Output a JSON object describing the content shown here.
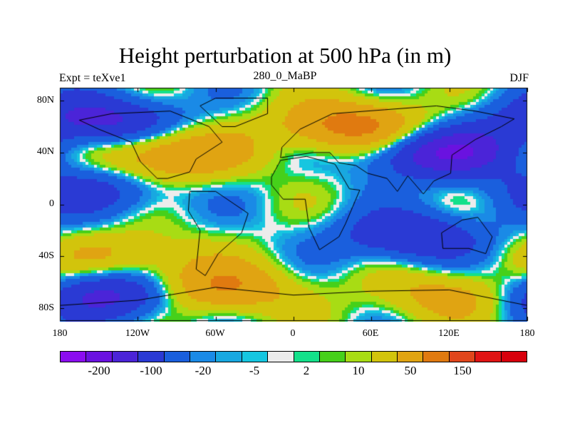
{
  "title": "Height perturbation at 500 hPa (in m)",
  "subtitle_left": "Expt = teXve1",
  "subtitle_center": "280_0_MaBP",
  "subtitle_right": "DJF",
  "y_ticks": [
    "80N",
    "40N",
    "0",
    "40S",
    "80S"
  ],
  "x_ticks": [
    "180",
    "120W",
    "60W",
    "0",
    "60E",
    "120E",
    "180"
  ],
  "colorbar": {
    "colors": [
      "#8b0df0",
      "#6a12e0",
      "#4b24d8",
      "#2a3ad4",
      "#1a5fdd",
      "#1a8ae6",
      "#18a8e0",
      "#16c6e0",
      "#ececec",
      "#14e08a",
      "#46d01a",
      "#a8dc14",
      "#d2c40c",
      "#e0a412",
      "#e07a10",
      "#e0461c",
      "#e01414",
      "#d8000c"
    ],
    "labels": [
      "-200",
      "-100",
      "-20",
      "-5",
      "2",
      "10",
      "50",
      "150"
    ]
  },
  "chart_data": {
    "type": "heatmap",
    "title": "Height perturbation at 500 hPa (in m)",
    "variable": "500 hPa height perturbation",
    "units": "m",
    "experiment": "Expt = teXve1",
    "period": "280_0_MaBP",
    "season": "DJF",
    "lon_range": [
      -180,
      180
    ],
    "lat_range": [
      -90,
      90
    ],
    "contour_levels": [
      -200,
      -150,
      -100,
      -50,
      -20,
      -10,
      -5,
      -2,
      2,
      5,
      10,
      20,
      50,
      100,
      150,
      200
    ],
    "colorbar_labels": [
      "-200",
      "-100",
      "-20",
      "-5",
      "2",
      "10",
      "50",
      "150"
    ],
    "features": [
      {
        "lon": -150,
        "lat": 65,
        "value": -120
      },
      {
        "lon": -95,
        "lat": 38,
        "value": 110
      },
      {
        "lon": 45,
        "lat": 60,
        "value": 130
      },
      {
        "lon": 115,
        "lat": 40,
        "value": -150
      },
      {
        "lon": -150,
        "lat": 10,
        "value": -70
      },
      {
        "lon": 90,
        "lat": -25,
        "value": -100
      },
      {
        "lon": -130,
        "lat": -40,
        "value": 60
      },
      {
        "lon": -140,
        "lat": -70,
        "value": -130
      },
      {
        "lon": -60,
        "lat": -65,
        "value": 110
      },
      {
        "lon": 120,
        "lat": -70,
        "value": 70
      }
    ]
  }
}
